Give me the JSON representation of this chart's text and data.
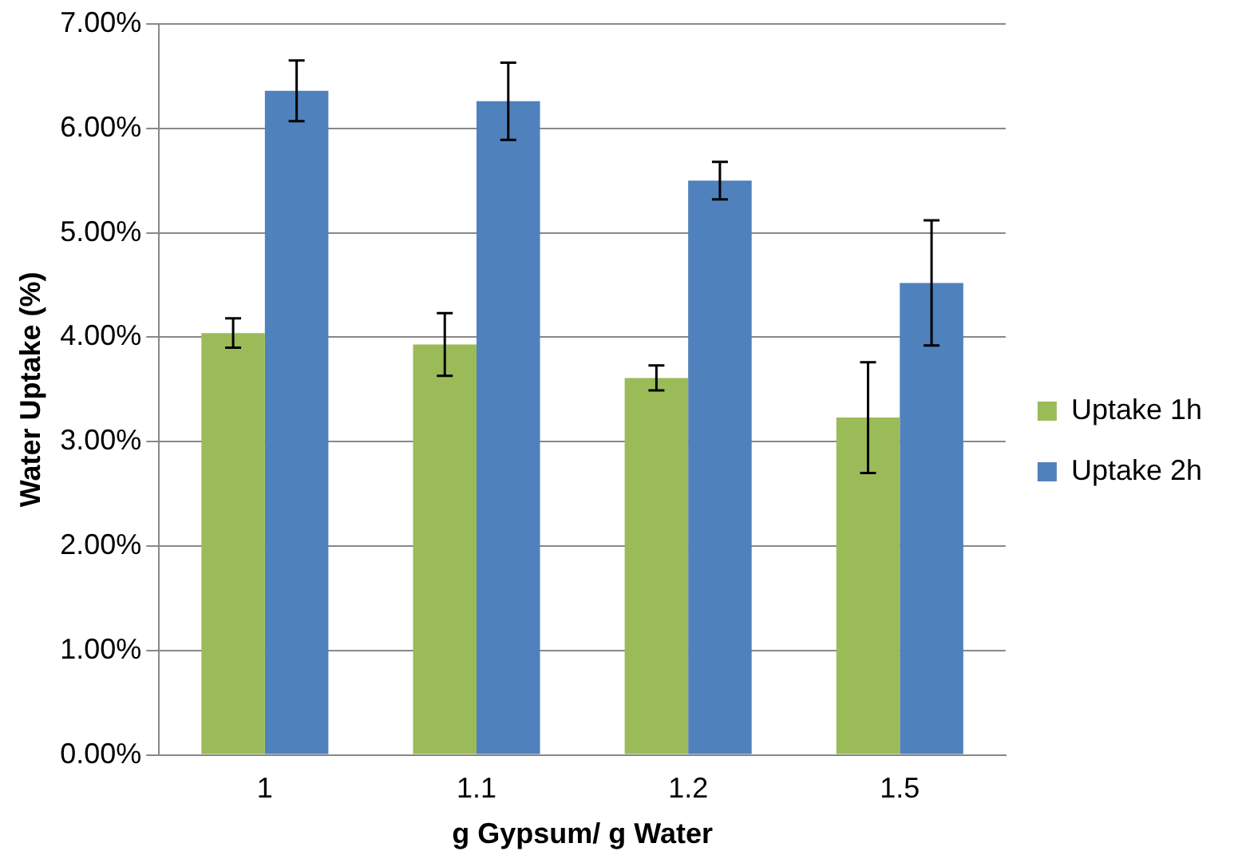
{
  "chart_data": {
    "type": "bar",
    "xlabel": "g Gypsum/ g Water",
    "ylabel": "Water Uptake (%)",
    "categories": [
      "1",
      "1.1",
      "1.2",
      "1.5"
    ],
    "series": [
      {
        "name": "Uptake 1h",
        "color": "#9bbb59",
        "values": [
          4.04,
          3.93,
          3.61,
          3.23
        ],
        "errors": [
          0.14,
          0.3,
          0.12,
          0.53
        ]
      },
      {
        "name": "Uptake 2h",
        "color": "#4f81bd",
        "values": [
          6.36,
          6.26,
          5.5,
          4.52
        ],
        "errors": [
          0.29,
          0.37,
          0.18,
          0.6
        ]
      }
    ],
    "ylim": [
      0,
      7
    ],
    "yticks": [
      {
        "value": 0,
        "label": "0.00%"
      },
      {
        "value": 1,
        "label": "1.00%"
      },
      {
        "value": 2,
        "label": "2.00%"
      },
      {
        "value": 3,
        "label": "3.00%"
      },
      {
        "value": 4,
        "label": "4.00%"
      },
      {
        "value": 5,
        "label": "5.00%"
      },
      {
        "value": 6,
        "label": "6.00%"
      },
      {
        "value": 7,
        "label": "7.00%"
      }
    ],
    "grid": "y",
    "legend": "right"
  }
}
